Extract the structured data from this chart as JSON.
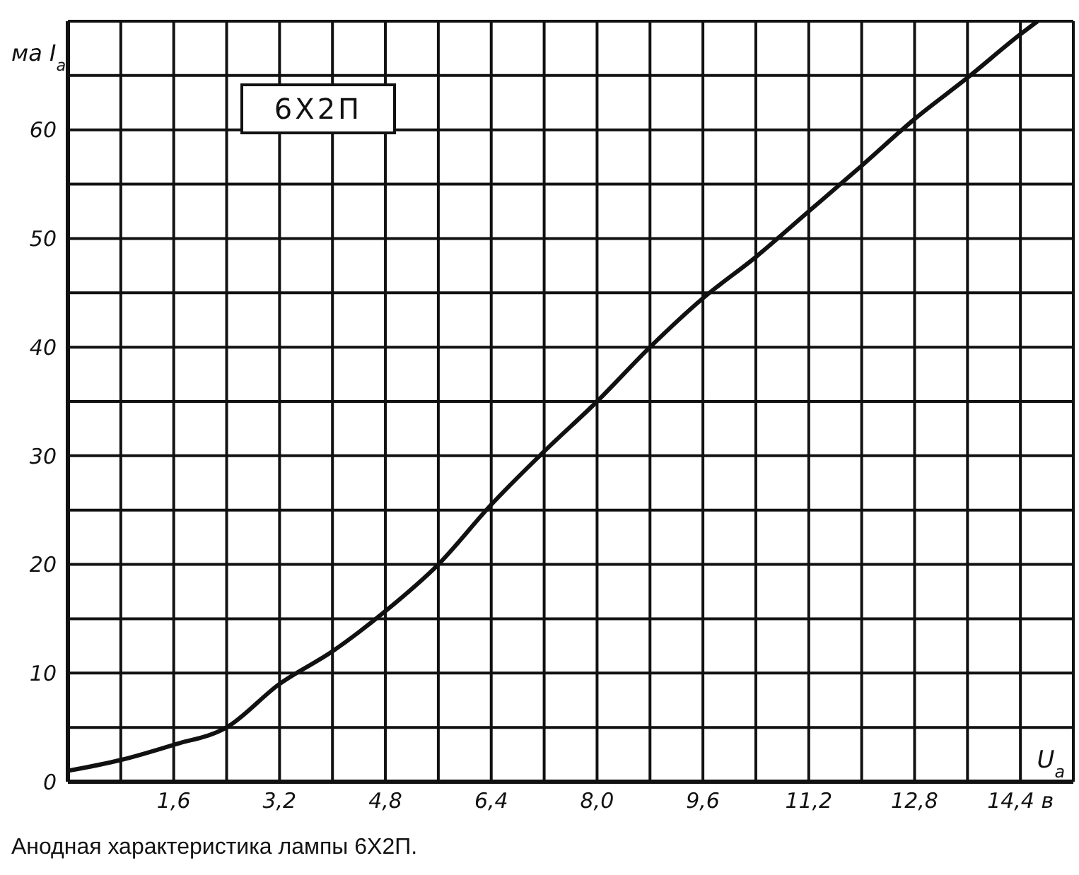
{
  "chart_data": {
    "type": "line",
    "xlabel": "U$_{a}$",
    "ylabel": "ма I$_{a}$",
    "annotations": [
      "6Х2П",
      "Анодная характеристика лампы 6Х2П."
    ],
    "x": [
      0,
      0.8,
      1.6,
      2.4,
      3.2,
      4.0,
      4.8,
      5.6,
      6.4,
      7.2,
      8.0,
      8.8,
      9.6,
      10.4,
      11.2,
      12.0,
      12.8,
      13.6,
      14.4,
      14.66
    ],
    "series": [
      {
        "color": "#111111",
        "values": [
          1,
          2,
          3.4,
          5,
          9,
          12,
          15.7,
          20,
          25.5,
          30.4,
          35,
          40,
          44.5,
          48.3,
          52.5,
          56.7,
          61,
          64.8,
          68.8,
          70
        ]
      }
    ],
    "xlim": [
      0,
      15.2
    ],
    "ylim": [
      0,
      70
    ],
    "xticks": [
      {
        "value": 0,
        "label": null
      },
      {
        "value": 0.8,
        "label": null
      },
      {
        "value": 1.6,
        "label": "1,6"
      },
      {
        "value": 2.4,
        "label": null
      },
      {
        "value": 3.2,
        "label": "3,2"
      },
      {
        "value": 4.0,
        "label": null
      },
      {
        "value": 4.8,
        "label": "4,8"
      },
      {
        "value": 5.6,
        "label": null
      },
      {
        "value": 6.4,
        "label": "6,4"
      },
      {
        "value": 7.2,
        "label": null
      },
      {
        "value": 8.0,
        "label": "8,0"
      },
      {
        "value": 8.8,
        "label": null
      },
      {
        "value": 9.6,
        "label": "9,6"
      },
      {
        "value": 10.4,
        "label": null
      },
      {
        "value": 11.2,
        "label": "11,2"
      },
      {
        "value": 12.0,
        "label": null
      },
      {
        "value": 12.8,
        "label": "12,8"
      },
      {
        "value": 13.6,
        "label": null
      },
      {
        "value": 14.4,
        "label": "14,4 в"
      },
      {
        "value": 15.2,
        "label": null
      }
    ],
    "yticks": [
      0,
      {
        "value": 5,
        "label": null
      },
      10,
      {
        "value": 15,
        "label": null
      },
      20,
      {
        "value": 25,
        "label": null
      },
      30,
      {
        "value": 35,
        "label": null
      },
      40,
      {
        "value": 45,
        "label": null
      },
      50,
      {
        "value": 55,
        "label": null
      },
      60,
      {
        "value": 65,
        "label": null
      },
      {
        "value": 70,
        "label": null
      }
    ],
    "grid": true,
    "line_style": "solid"
  }
}
